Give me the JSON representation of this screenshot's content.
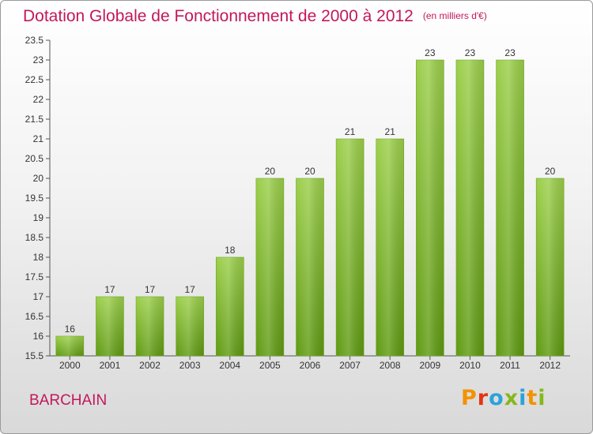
{
  "header": {
    "title": "Dotation Globale de Fonctionnement de 2000 à 2012",
    "unit": "(en milliers d'€)"
  },
  "footer": {
    "commune": "BARCHAIN",
    "logo": "Proxiti"
  },
  "colors": {
    "title": "#c2185b",
    "bar_top": "#9ccf4b",
    "bar_bottom": "#5f9a12",
    "logo_letters": [
      "#f39200",
      "#e63312",
      "#2aa3d8",
      "#85b81d",
      "#2aa3d8",
      "#f39200",
      "#85b81d"
    ]
  },
  "chart_data": {
    "type": "bar",
    "categories": [
      "2000",
      "2001",
      "2002",
      "2003",
      "2004",
      "2005",
      "2006",
      "2007",
      "2008",
      "2009",
      "2010",
      "2011",
      "2012"
    ],
    "values": [
      16,
      17,
      17,
      17,
      18,
      20,
      20,
      21,
      21,
      23,
      23,
      23,
      20
    ],
    "title": "Dotation Globale de Fonctionnement de 2000 à 2012",
    "subtitle": "(en milliers d'€)",
    "xlabel": "",
    "ylabel": "",
    "ylim": [
      15.5,
      23.5
    ],
    "yticks": [
      15.5,
      16,
      16.5,
      17,
      17.5,
      18,
      18.5,
      19,
      19.5,
      20,
      20.5,
      21,
      21.5,
      22,
      22.5,
      23,
      23.5
    ],
    "grid": false,
    "legend": "none"
  }
}
